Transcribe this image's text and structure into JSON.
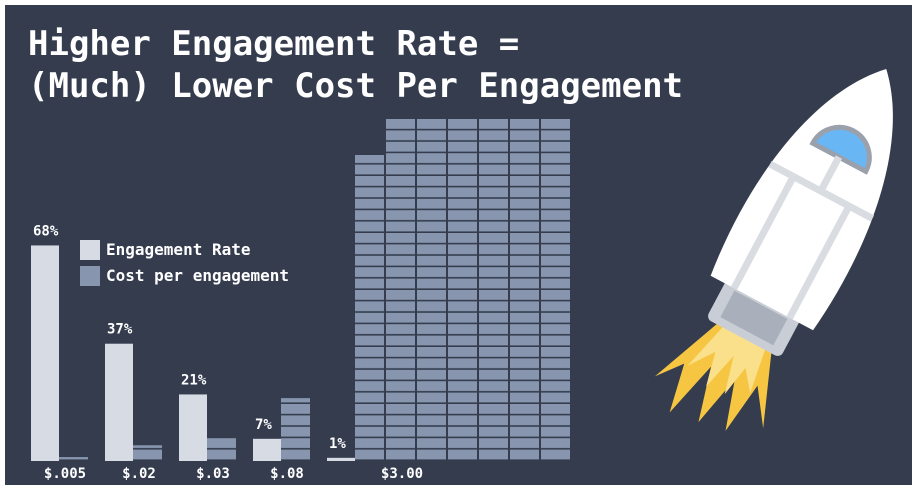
{
  "chart_data": {
    "type": "bar",
    "title": [
      "Higher Engagement Rate =",
      "(Much) Lower Cost Per Engagement"
    ],
    "categories": [
      "$.005",
      "$.02",
      "$.03",
      "$.08",
      "$3.00"
    ],
    "series": [
      {
        "name": "Engagement Rate",
        "color": "#d6dbe4",
        "values": [
          68,
          37,
          21,
          7,
          1
        ],
        "value_labels": [
          "68%",
          "37%",
          "21%",
          "7%",
          "1%"
        ]
      },
      {
        "name": "Cost per engagement",
        "color": "#8796ae",
        "values": [
          0.005,
          0.02,
          0.03,
          0.08,
          3.0
        ]
      }
    ]
  }
}
